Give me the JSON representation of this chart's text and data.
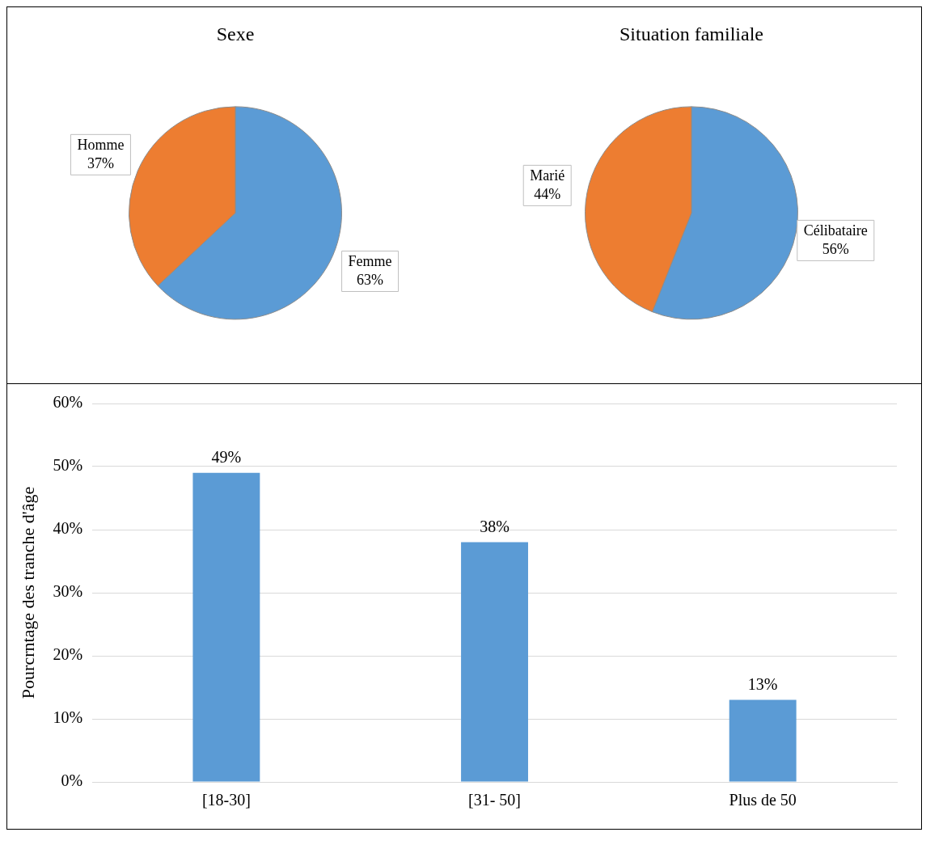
{
  "chart_data": [
    {
      "type": "pie",
      "title": "Sexe",
      "categories": [
        "Femme",
        "Homme"
      ],
      "values": [
        63,
        37
      ],
      "colors": [
        "#5b9bd5",
        "#ed7d31"
      ],
      "value_labels": [
        "63%",
        "37%"
      ],
      "legend": false
    },
    {
      "type": "pie",
      "title": "Situation familiale",
      "categories": [
        "Célibataire",
        "Marié"
      ],
      "values": [
        56,
        44
      ],
      "colors": [
        "#5b9bd5",
        "#ed7d31"
      ],
      "value_labels": [
        "56%",
        "44%"
      ],
      "legend": false
    },
    {
      "type": "bar",
      "ylabel": "Pourcrntage des tranche d'âge",
      "categories": [
        "[18-30]",
        "[31- 50]",
        "Plus de 50"
      ],
      "values": [
        49,
        38,
        13
      ],
      "color": "#5b9bd5",
      "value_labels": [
        "49%",
        "38%",
        "13%"
      ],
      "ylim": [
        0,
        60
      ],
      "yticks": [
        {
          "value": 0,
          "label": "0%"
        },
        {
          "value": 10,
          "label": "10%"
        },
        {
          "value": 20,
          "label": "20%"
        },
        {
          "value": 30,
          "label": "30%"
        },
        {
          "value": 40,
          "label": "40%"
        },
        {
          "value": 50,
          "label": "50%"
        },
        {
          "value": 60,
          "label": "60%"
        }
      ],
      "grid": "y",
      "legend": false
    }
  ]
}
